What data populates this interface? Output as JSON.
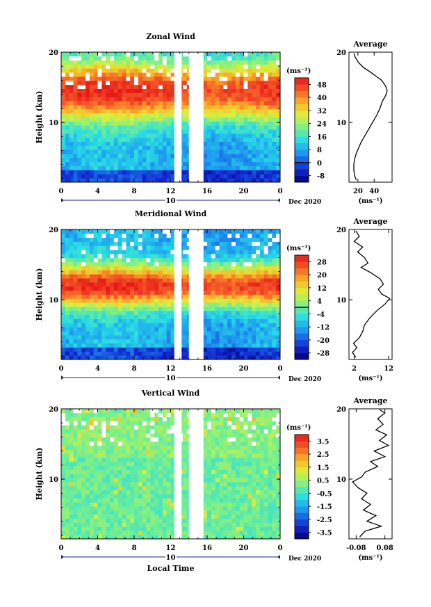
{
  "figure": {
    "time_axis_label": "Local Time",
    "date_label": "Dec 2020",
    "day_label": "10",
    "colorbar_unit": "(ms⁻¹)",
    "avg_unit": "(ms⁻¹)"
  },
  "chart_data": [
    {
      "type": "heatmap",
      "title": "Zonal Wind",
      "ylabel": "Height (km)",
      "x_ticks": [
        "0",
        "4",
        "8",
        "12",
        "16",
        "20",
        "0"
      ],
      "x_range_hours": [
        0,
        24
      ],
      "y_ticks": [
        "10",
        "20"
      ],
      "y_range_km": [
        1.5,
        20
      ],
      "data_gap_hours": [
        [
          12.4,
          13.2
        ],
        [
          14.0,
          15.6
        ]
      ],
      "colorbar_ticks": [
        "48",
        "40",
        "32",
        "24",
        "16",
        "8",
        "0",
        "-8"
      ],
      "colorbar_range": [
        -12,
        52
      ],
      "contour_level": 0,
      "profile_peak_km": 14.5,
      "profile_width_km": 4.2
    },
    {
      "type": "line",
      "title": "Average",
      "xlabel": "(ms⁻¹)",
      "x_ticks": [
        "20",
        "40"
      ],
      "xlim": [
        9,
        62
      ],
      "ylim": [
        1.5,
        20
      ],
      "y_ticks": [
        "10",
        "20"
      ],
      "series": [
        {
          "points": [
            [
              18,
              1.8
            ],
            [
              16,
              2.4
            ],
            [
              15,
              3.2
            ],
            [
              15,
              4.0
            ],
            [
              16,
              4.8
            ],
            [
              18,
              5.6
            ],
            [
              21,
              6.4
            ],
            [
              24,
              7.2
            ],
            [
              28,
              8.0
            ],
            [
              33,
              9.0
            ],
            [
              38,
              10.0
            ],
            [
              43,
              11.0
            ],
            [
              47,
              12.0
            ],
            [
              50,
              13.0
            ],
            [
              54,
              13.8
            ],
            [
              56,
              14.5
            ],
            [
              54,
              15.2
            ],
            [
              49,
              16.0
            ],
            [
              42,
              16.6
            ],
            [
              35,
              17.2
            ],
            [
              27,
              17.8
            ],
            [
              21,
              18.5
            ],
            [
              17,
              19.2
            ],
            [
              15,
              19.8
            ]
          ]
        }
      ]
    },
    {
      "type": "heatmap",
      "title": "Meridional Wind",
      "ylabel": "Height (km)",
      "x_ticks": [
        "0",
        "4",
        "8",
        "12",
        "16",
        "20",
        "0"
      ],
      "x_range_hours": [
        0,
        24
      ],
      "y_ticks": [
        "10",
        "20"
      ],
      "y_range_km": [
        1.5,
        20
      ],
      "data_gap_hours": [
        [
          12.4,
          13.2
        ],
        [
          14.0,
          15.6
        ]
      ],
      "colorbar_ticks": [
        "28",
        "20",
        "12",
        "4",
        "-4",
        "-12",
        "-20",
        "-28"
      ],
      "colorbar_range": [
        -32,
        32
      ],
      "contour_level": 0,
      "profile_peak_km": 12.0,
      "profile_width_km": 3.0
    },
    {
      "type": "line",
      "title": "Average",
      "xlabel": "(ms⁻¹)",
      "x_ticks": [
        "2",
        "12"
      ],
      "xlim": [
        0.5,
        13
      ],
      "ylim": [
        1.5,
        20
      ],
      "y_ticks": [
        "10",
        "20"
      ],
      "series": [
        {
          "points": [
            [
              2.5,
              1.8
            ],
            [
              1.5,
              2.5
            ],
            [
              2.8,
              3.2
            ],
            [
              1.8,
              3.8
            ],
            [
              3.5,
              4.6
            ],
            [
              4.5,
              5.5
            ],
            [
              5.0,
              6.4
            ],
            [
              6.5,
              7.4
            ],
            [
              8.5,
              8.4
            ],
            [
              11,
              9.4
            ],
            [
              12.3,
              10.2
            ],
            [
              10,
              10.8
            ],
            [
              9,
              11.5
            ],
            [
              10.5,
              12.2
            ],
            [
              9.5,
              13.0
            ],
            [
              7,
              13.8
            ],
            [
              4,
              14.6
            ],
            [
              6,
              15.2
            ],
            [
              5,
              16.0
            ],
            [
              3,
              16.8
            ],
            [
              4.5,
              17.5
            ],
            [
              2,
              18.3
            ],
            [
              3.5,
              19.0
            ],
            [
              2.5,
              19.8
            ]
          ]
        }
      ]
    },
    {
      "type": "heatmap",
      "title": "Vertical Wind",
      "ylabel": "Height (km)",
      "xlabel": "Local Time",
      "x_ticks": [
        "0",
        "4",
        "8",
        "12",
        "16",
        "20",
        "0"
      ],
      "x_range_hours": [
        0,
        24
      ],
      "y_ticks": [
        "10",
        "20"
      ],
      "y_range_km": [
        1.5,
        20
      ],
      "data_gap_hours": [
        [
          12.4,
          13.2
        ],
        [
          14.0,
          15.6
        ]
      ],
      "colorbar_ticks": [
        "3.5",
        "2.5",
        "1.5",
        "0.5",
        "-0.5",
        "-1.5",
        "-2.5",
        "-3.5"
      ],
      "colorbar_range": [
        -4,
        4
      ],
      "contour_level": null,
      "profile_peak_km": null,
      "profile_width_km": null
    },
    {
      "type": "line",
      "title": "Average",
      "xlabel": "(ms⁻¹)",
      "x_ticks": [
        "-0.08",
        "0.08"
      ],
      "xlim": [
        -0.12,
        0.12
      ],
      "ylim": [
        1.5,
        20
      ],
      "y_ticks": [
        "10",
        "20"
      ],
      "series": [
        {
          "points": [
            [
              -0.06,
              1.8
            ],
            [
              -0.03,
              2.6
            ],
            [
              0.06,
              3.3
            ],
            [
              -0.02,
              4.0
            ],
            [
              0.03,
              4.8
            ],
            [
              -0.04,
              5.6
            ],
            [
              0.0,
              6.4
            ],
            [
              -0.05,
              7.2
            ],
            [
              -0.02,
              8.0
            ],
            [
              -0.07,
              8.8
            ],
            [
              -0.1,
              9.6
            ],
            [
              -0.05,
              10.3
            ],
            [
              -0.03,
              11.0
            ],
            [
              0.04,
              11.8
            ],
            [
              0.0,
              12.5
            ],
            [
              0.08,
              13.2
            ],
            [
              0.02,
              14.0
            ],
            [
              0.1,
              14.8
            ],
            [
              0.05,
              15.5
            ],
            [
              0.09,
              16.3
            ],
            [
              0.03,
              17.0
            ],
            [
              0.07,
              17.8
            ],
            [
              0.04,
              18.6
            ],
            [
              0.08,
              19.4
            ],
            [
              0.05,
              19.9
            ]
          ]
        }
      ]
    }
  ]
}
